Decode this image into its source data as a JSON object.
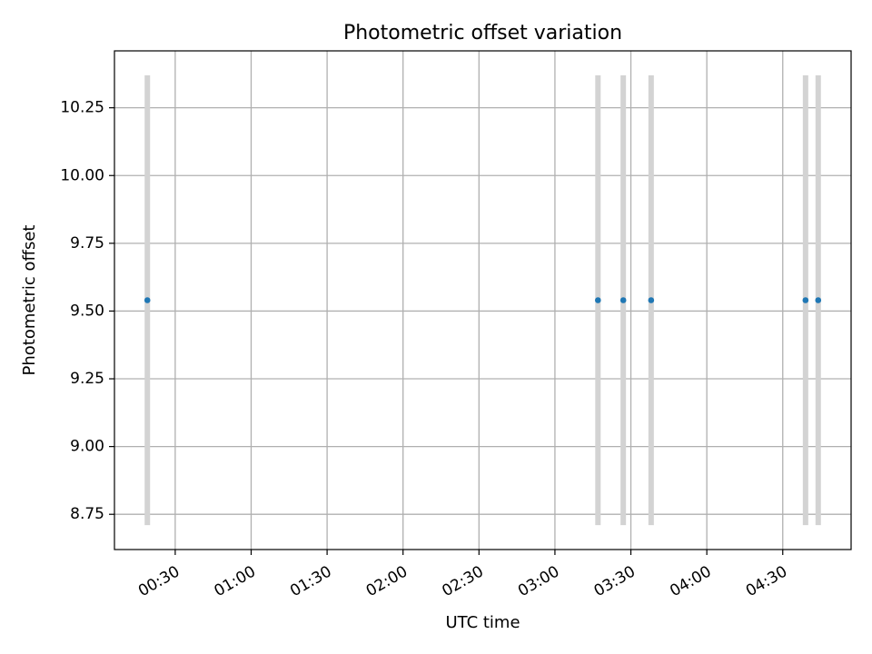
{
  "chart_data": {
    "type": "scatter",
    "title": "Photometric offset variation",
    "xlabel": "UTC time",
    "ylabel": "Photometric offset",
    "xlim": [
      "00:06",
      "04:57"
    ],
    "ylim": [
      8.62,
      10.46
    ],
    "x_ticks": [
      "00:30",
      "01:00",
      "01:30",
      "02:00",
      "02:30",
      "03:00",
      "03:30",
      "04:00",
      "04:30"
    ],
    "y_ticks": [
      "8.75",
      "9.00",
      "9.25",
      "9.50",
      "9.75",
      "10.00",
      "10.25"
    ],
    "grid": true,
    "points": [
      {
        "x": "00:19",
        "y": 9.54,
        "err_low": 8.71,
        "err_high": 10.37
      },
      {
        "x": "03:17",
        "y": 9.54,
        "err_low": 8.71,
        "err_high": 10.37
      },
      {
        "x": "03:27",
        "y": 9.54,
        "err_low": 8.71,
        "err_high": 10.37
      },
      {
        "x": "03:38",
        "y": 9.54,
        "err_low": 8.71,
        "err_high": 10.37
      },
      {
        "x": "04:39",
        "y": 9.54,
        "err_low": 8.71,
        "err_high": 10.37
      },
      {
        "x": "04:44",
        "y": 9.54,
        "err_low": 8.71,
        "err_high": 10.37
      }
    ],
    "colors": {
      "point": "#1f77b4",
      "errorbar": "#d3d3d3",
      "grid": "#b0b0b0",
      "axis": "#000000"
    }
  }
}
